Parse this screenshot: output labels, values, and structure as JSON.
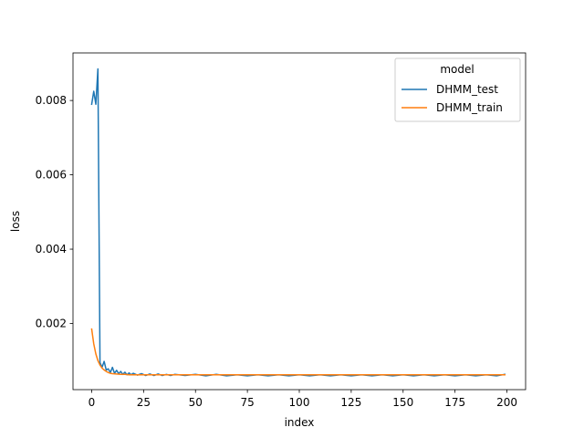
{
  "chart_data": {
    "type": "line",
    "title": "",
    "xlabel": "index",
    "ylabel": "loss",
    "xlim": [
      -9,
      209
    ],
    "ylim": [
      0.00022,
      0.00928
    ],
    "x_ticks": [
      0,
      25,
      50,
      75,
      100,
      125,
      150,
      175,
      200
    ],
    "x_tick_labels": [
      "0",
      "25",
      "50",
      "75",
      "100",
      "125",
      "150",
      "175",
      "200"
    ],
    "y_ticks": [
      0.002,
      0.004,
      0.006,
      0.008
    ],
    "y_tick_labels": [
      "0.002",
      "0.004",
      "0.006",
      "0.008"
    ],
    "grid": false,
    "legend": {
      "title": "model",
      "placement": "top-right"
    },
    "series": [
      {
        "name": "DHMM_test",
        "color": "#1f77b4",
        "x": [
          0,
          1,
          2,
          3,
          4,
          5,
          6,
          7,
          8,
          9,
          10,
          11,
          12,
          13,
          14,
          15,
          16,
          17,
          18,
          19,
          20,
          22,
          24,
          26,
          28,
          30,
          32,
          34,
          36,
          38,
          40,
          45,
          50,
          55,
          60,
          65,
          70,
          75,
          80,
          85,
          90,
          95,
          100,
          105,
          110,
          115,
          120,
          125,
          130,
          135,
          140,
          145,
          150,
          155,
          160,
          165,
          170,
          175,
          180,
          185,
          190,
          195,
          199
        ],
        "values": [
          0.0079,
          0.00825,
          0.0079,
          0.00885,
          0.00095,
          0.00082,
          0.00098,
          0.00075,
          0.00078,
          0.00068,
          0.00082,
          0.00066,
          0.00074,
          0.00065,
          0.00071,
          0.00063,
          0.00069,
          0.00062,
          0.00067,
          0.00062,
          0.00066,
          0.00061,
          0.00065,
          0.0006,
          0.00064,
          0.0006,
          0.00064,
          0.0006,
          0.00063,
          0.0006,
          0.00063,
          0.0006,
          0.00063,
          0.00059,
          0.00063,
          0.00059,
          0.00062,
          0.00059,
          0.00062,
          0.00059,
          0.00062,
          0.00059,
          0.00062,
          0.00059,
          0.00062,
          0.00059,
          0.00062,
          0.00059,
          0.00062,
          0.00059,
          0.00062,
          0.00059,
          0.00062,
          0.00059,
          0.00062,
          0.00059,
          0.00062,
          0.00059,
          0.00062,
          0.00059,
          0.00062,
          0.00059,
          0.00063
        ]
      },
      {
        "name": "DHMM_train",
        "color": "#ff7f0e",
        "x": [
          0,
          1,
          2,
          3,
          4,
          5,
          6,
          7,
          8,
          9,
          10,
          12,
          14,
          16,
          18,
          20,
          25,
          30,
          40,
          50,
          60,
          80,
          100,
          125,
          150,
          175,
          199
        ],
        "values": [
          0.00185,
          0.00145,
          0.00118,
          0.001,
          0.00088,
          0.0008,
          0.00075,
          0.00071,
          0.00068,
          0.00066,
          0.00065,
          0.00064,
          0.00063,
          0.00063,
          0.00062,
          0.00062,
          0.00062,
          0.00062,
          0.00062,
          0.00062,
          0.00062,
          0.00062,
          0.00062,
          0.00062,
          0.00062,
          0.00062,
          0.00062
        ]
      }
    ]
  }
}
